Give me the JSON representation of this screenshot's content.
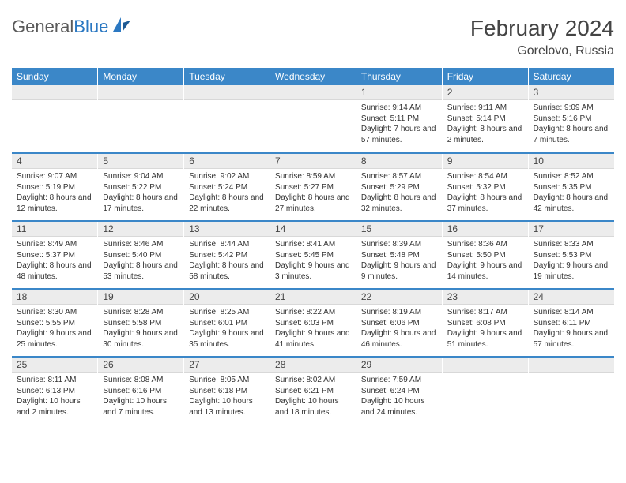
{
  "brand": {
    "part1": "General",
    "part2": "Blue"
  },
  "title": "February 2024",
  "location": "Gorelovo, Russia",
  "colors": {
    "header_bg": "#3b87c8",
    "header_text": "#ffffff",
    "daynum_bg": "#ececec",
    "row_divider": "#3b87c8",
    "body_bg": "#ffffff",
    "text": "#333333",
    "brand_gray": "#5a5a5a",
    "brand_blue": "#2b78c2"
  },
  "weekdays": [
    "Sunday",
    "Monday",
    "Tuesday",
    "Wednesday",
    "Thursday",
    "Friday",
    "Saturday"
  ],
  "weeks": [
    [
      {
        "blank": true
      },
      {
        "blank": true
      },
      {
        "blank": true
      },
      {
        "blank": true
      },
      {
        "day": "1",
        "sunrise": "Sunrise: 9:14 AM",
        "sunset": "Sunset: 5:11 PM",
        "daylight": "Daylight: 7 hours and 57 minutes."
      },
      {
        "day": "2",
        "sunrise": "Sunrise: 9:11 AM",
        "sunset": "Sunset: 5:14 PM",
        "daylight": "Daylight: 8 hours and 2 minutes."
      },
      {
        "day": "3",
        "sunrise": "Sunrise: 9:09 AM",
        "sunset": "Sunset: 5:16 PM",
        "daylight": "Daylight: 8 hours and 7 minutes."
      }
    ],
    [
      {
        "day": "4",
        "sunrise": "Sunrise: 9:07 AM",
        "sunset": "Sunset: 5:19 PM",
        "daylight": "Daylight: 8 hours and 12 minutes."
      },
      {
        "day": "5",
        "sunrise": "Sunrise: 9:04 AM",
        "sunset": "Sunset: 5:22 PM",
        "daylight": "Daylight: 8 hours and 17 minutes."
      },
      {
        "day": "6",
        "sunrise": "Sunrise: 9:02 AM",
        "sunset": "Sunset: 5:24 PM",
        "daylight": "Daylight: 8 hours and 22 minutes."
      },
      {
        "day": "7",
        "sunrise": "Sunrise: 8:59 AM",
        "sunset": "Sunset: 5:27 PM",
        "daylight": "Daylight: 8 hours and 27 minutes."
      },
      {
        "day": "8",
        "sunrise": "Sunrise: 8:57 AM",
        "sunset": "Sunset: 5:29 PM",
        "daylight": "Daylight: 8 hours and 32 minutes."
      },
      {
        "day": "9",
        "sunrise": "Sunrise: 8:54 AM",
        "sunset": "Sunset: 5:32 PM",
        "daylight": "Daylight: 8 hours and 37 minutes."
      },
      {
        "day": "10",
        "sunrise": "Sunrise: 8:52 AM",
        "sunset": "Sunset: 5:35 PM",
        "daylight": "Daylight: 8 hours and 42 minutes."
      }
    ],
    [
      {
        "day": "11",
        "sunrise": "Sunrise: 8:49 AM",
        "sunset": "Sunset: 5:37 PM",
        "daylight": "Daylight: 8 hours and 48 minutes."
      },
      {
        "day": "12",
        "sunrise": "Sunrise: 8:46 AM",
        "sunset": "Sunset: 5:40 PM",
        "daylight": "Daylight: 8 hours and 53 minutes."
      },
      {
        "day": "13",
        "sunrise": "Sunrise: 8:44 AM",
        "sunset": "Sunset: 5:42 PM",
        "daylight": "Daylight: 8 hours and 58 minutes."
      },
      {
        "day": "14",
        "sunrise": "Sunrise: 8:41 AM",
        "sunset": "Sunset: 5:45 PM",
        "daylight": "Daylight: 9 hours and 3 minutes."
      },
      {
        "day": "15",
        "sunrise": "Sunrise: 8:39 AM",
        "sunset": "Sunset: 5:48 PM",
        "daylight": "Daylight: 9 hours and 9 minutes."
      },
      {
        "day": "16",
        "sunrise": "Sunrise: 8:36 AM",
        "sunset": "Sunset: 5:50 PM",
        "daylight": "Daylight: 9 hours and 14 minutes."
      },
      {
        "day": "17",
        "sunrise": "Sunrise: 8:33 AM",
        "sunset": "Sunset: 5:53 PM",
        "daylight": "Daylight: 9 hours and 19 minutes."
      }
    ],
    [
      {
        "day": "18",
        "sunrise": "Sunrise: 8:30 AM",
        "sunset": "Sunset: 5:55 PM",
        "daylight": "Daylight: 9 hours and 25 minutes."
      },
      {
        "day": "19",
        "sunrise": "Sunrise: 8:28 AM",
        "sunset": "Sunset: 5:58 PM",
        "daylight": "Daylight: 9 hours and 30 minutes."
      },
      {
        "day": "20",
        "sunrise": "Sunrise: 8:25 AM",
        "sunset": "Sunset: 6:01 PM",
        "daylight": "Daylight: 9 hours and 35 minutes."
      },
      {
        "day": "21",
        "sunrise": "Sunrise: 8:22 AM",
        "sunset": "Sunset: 6:03 PM",
        "daylight": "Daylight: 9 hours and 41 minutes."
      },
      {
        "day": "22",
        "sunrise": "Sunrise: 8:19 AM",
        "sunset": "Sunset: 6:06 PM",
        "daylight": "Daylight: 9 hours and 46 minutes."
      },
      {
        "day": "23",
        "sunrise": "Sunrise: 8:17 AM",
        "sunset": "Sunset: 6:08 PM",
        "daylight": "Daylight: 9 hours and 51 minutes."
      },
      {
        "day": "24",
        "sunrise": "Sunrise: 8:14 AM",
        "sunset": "Sunset: 6:11 PM",
        "daylight": "Daylight: 9 hours and 57 minutes."
      }
    ],
    [
      {
        "day": "25",
        "sunrise": "Sunrise: 8:11 AM",
        "sunset": "Sunset: 6:13 PM",
        "daylight": "Daylight: 10 hours and 2 minutes."
      },
      {
        "day": "26",
        "sunrise": "Sunrise: 8:08 AM",
        "sunset": "Sunset: 6:16 PM",
        "daylight": "Daylight: 10 hours and 7 minutes."
      },
      {
        "day": "27",
        "sunrise": "Sunrise: 8:05 AM",
        "sunset": "Sunset: 6:18 PM",
        "daylight": "Daylight: 10 hours and 13 minutes."
      },
      {
        "day": "28",
        "sunrise": "Sunrise: 8:02 AM",
        "sunset": "Sunset: 6:21 PM",
        "daylight": "Daylight: 10 hours and 18 minutes."
      },
      {
        "day": "29",
        "sunrise": "Sunrise: 7:59 AM",
        "sunset": "Sunset: 6:24 PM",
        "daylight": "Daylight: 10 hours and 24 minutes."
      },
      {
        "blank": true
      },
      {
        "blank": true
      }
    ]
  ]
}
